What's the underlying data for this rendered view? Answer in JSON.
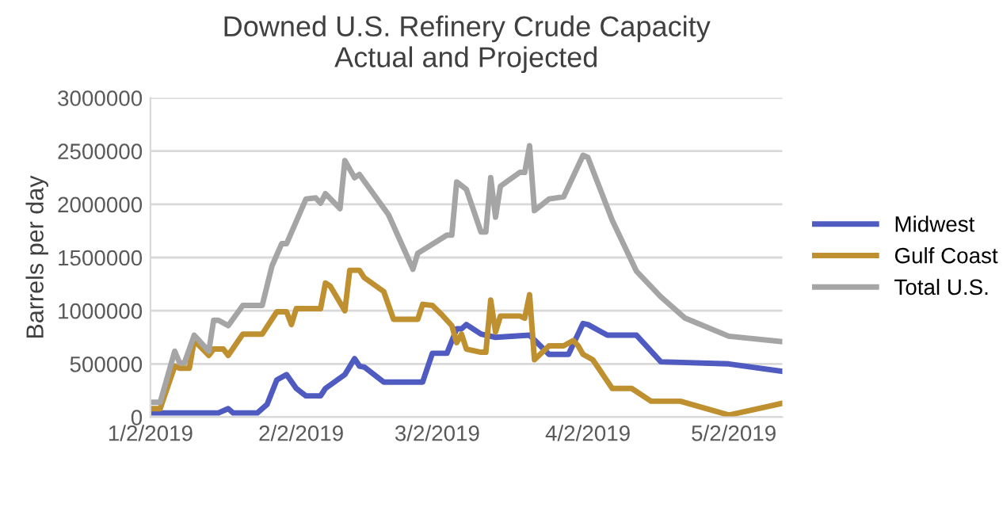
{
  "chart_data": {
    "type": "line",
    "title": "Downed U.S. Refinery Crude Capacity\nActual and Projected",
    "ylabel": "Barrels per day",
    "xlim": [
      "2019-01-02",
      "2019-05-12"
    ],
    "xticks": [
      {
        "value": "2019-01-02",
        "label": "1/2/2019"
      },
      {
        "value": "2019-02-02",
        "label": "2/2/2019"
      },
      {
        "value": "2019-03-02",
        "label": "3/2/2019"
      },
      {
        "value": "2019-04-02",
        "label": "4/2/2019"
      },
      {
        "value": "2019-05-02",
        "label": "5/2/2019"
      }
    ],
    "ylim": [
      0,
      3000000
    ],
    "yticks": [
      0,
      500000,
      1000000,
      1500000,
      2000000,
      2500000,
      3000000
    ],
    "grid": "y",
    "legend": "right",
    "marker": "none",
    "line_style": "solid",
    "series": [
      {
        "name": "Midwest",
        "color": "#4f5bc0",
        "x": [
          "2019-01-02",
          "2019-01-16",
          "2019-01-18",
          "2019-01-19",
          "2019-01-24",
          "2019-01-26",
          "2019-01-28",
          "2019-01-30",
          "2019-02-01",
          "2019-02-03",
          "2019-02-06",
          "2019-02-07",
          "2019-02-11",
          "2019-02-13",
          "2019-02-14",
          "2019-02-15",
          "2019-02-19",
          "2019-02-27",
          "2019-03-01",
          "2019-03-04",
          "2019-03-06",
          "2019-03-07",
          "2019-03-08",
          "2019-03-11",
          "2019-03-14",
          "2019-03-21",
          "2019-03-25",
          "2019-03-29",
          "2019-04-01",
          "2019-04-02",
          "2019-04-06",
          "2019-04-12",
          "2019-04-17",
          "2019-05-01",
          "2019-05-12"
        ],
        "values": [
          40000,
          40000,
          80000,
          40000,
          40000,
          120000,
          350000,
          400000,
          270000,
          200000,
          200000,
          270000,
          400000,
          550000,
          480000,
          470000,
          330000,
          330000,
          600000,
          600000,
          830000,
          830000,
          870000,
          780000,
          750000,
          770000,
          590000,
          590000,
          880000,
          870000,
          770000,
          770000,
          520000,
          500000,
          430000
        ]
      },
      {
        "name": "Gulf Coast",
        "color": "#bf9030",
        "x": [
          "2019-01-02",
          "2019-01-04",
          "2019-01-07",
          "2019-01-08",
          "2019-01-10",
          "2019-01-11",
          "2019-01-14",
          "2019-01-15",
          "2019-01-17",
          "2019-01-18",
          "2019-01-21",
          "2019-01-25",
          "2019-01-28",
          "2019-01-30",
          "2019-01-31",
          "2019-02-01",
          "2019-02-06",
          "2019-02-07",
          "2019-02-08",
          "2019-02-11",
          "2019-02-12",
          "2019-02-14",
          "2019-02-15",
          "2019-02-19",
          "2019-02-21",
          "2019-02-26",
          "2019-02-27",
          "2019-03-01",
          "2019-03-03",
          "2019-03-05",
          "2019-03-06",
          "2019-03-07",
          "2019-03-08",
          "2019-03-11",
          "2019-03-12",
          "2019-03-13",
          "2019-03-14",
          "2019-03-15",
          "2019-03-19",
          "2019-03-20",
          "2019-03-21",
          "2019-03-22",
          "2019-03-25",
          "2019-03-28",
          "2019-03-30",
          "2019-03-31",
          "2019-04-01",
          "2019-04-03",
          "2019-04-07",
          "2019-04-11",
          "2019-04-15",
          "2019-04-21",
          "2019-05-01",
          "2019-05-12"
        ],
        "values": [
          80000,
          80000,
          480000,
          460000,
          460000,
          720000,
          580000,
          640000,
          640000,
          580000,
          780000,
          780000,
          990000,
          990000,
          870000,
          1020000,
          1020000,
          1260000,
          1230000,
          1000000,
          1380000,
          1380000,
          1310000,
          1180000,
          920000,
          920000,
          1060000,
          1050000,
          960000,
          860000,
          700000,
          780000,
          640000,
          610000,
          610000,
          1100000,
          800000,
          950000,
          950000,
          930000,
          1150000,
          540000,
          670000,
          670000,
          720000,
          670000,
          590000,
          540000,
          270000,
          270000,
          150000,
          150000,
          20000,
          130000
        ]
      },
      {
        "name": "Total U.S.",
        "color": "#a5a5a5",
        "x": [
          "2019-01-02",
          "2019-01-04",
          "2019-01-07",
          "2019-01-08",
          "2019-01-09",
          "2019-01-11",
          "2019-01-14",
          "2019-01-15",
          "2019-01-16",
          "2019-01-18",
          "2019-01-21",
          "2019-01-25",
          "2019-01-27",
          "2019-01-29",
          "2019-01-30",
          "2019-02-03",
          "2019-02-05",
          "2019-02-06",
          "2019-02-07",
          "2019-02-10",
          "2019-02-11",
          "2019-02-13",
          "2019-02-14",
          "2019-02-20",
          "2019-02-25",
          "2019-02-26",
          "2019-03-04",
          "2019-03-05",
          "2019-03-06",
          "2019-03-08",
          "2019-03-11",
          "2019-03-12",
          "2019-03-13",
          "2019-03-14",
          "2019-03-15",
          "2019-03-19",
          "2019-03-20",
          "2019-03-21",
          "2019-03-22",
          "2019-03-25",
          "2019-03-28",
          "2019-04-01",
          "2019-04-02",
          "2019-04-07",
          "2019-04-12",
          "2019-04-17",
          "2019-04-22",
          "2019-05-01",
          "2019-05-12"
        ],
        "values": [
          140000,
          140000,
          620000,
          510000,
          510000,
          770000,
          620000,
          910000,
          910000,
          860000,
          1050000,
          1050000,
          1420000,
          1630000,
          1630000,
          2050000,
          2060000,
          2010000,
          2100000,
          1960000,
          2410000,
          2250000,
          2280000,
          1900000,
          1390000,
          1540000,
          1710000,
          1710000,
          2210000,
          2140000,
          1740000,
          1740000,
          2250000,
          1880000,
          2170000,
          2300000,
          2300000,
          2550000,
          1940000,
          2050000,
          2070000,
          2460000,
          2440000,
          1850000,
          1370000,
          1130000,
          930000,
          760000,
          710000
        ]
      }
    ]
  }
}
